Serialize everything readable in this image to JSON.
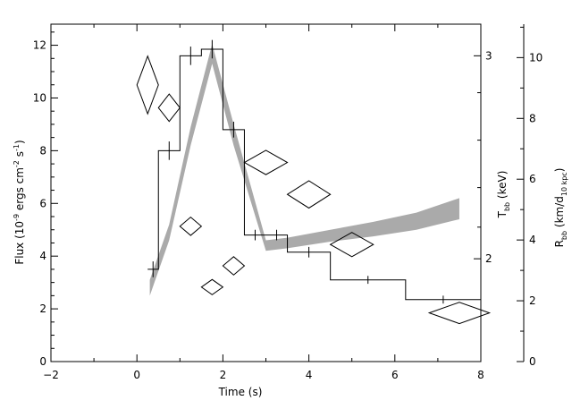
{
  "chart_data": {
    "type": "line",
    "title": "",
    "xlabel": "Time (s)",
    "ylabel_left_parts": {
      "pre": "Flux (10",
      "exp1": "-9",
      "mid": " ergs cm",
      "exp2": "-2",
      "mid2": " s",
      "exp3": "-1",
      "post": ")"
    },
    "ylabel_right1_parts": {
      "T": "T",
      "sub": "bb",
      "post": " (keV)"
    },
    "ylabel_right2_parts": {
      "R": "R",
      "sub": "bb",
      "mid": " (km/d",
      "sub2": "10 kpc",
      "post": ")"
    },
    "xlim": [
      -2,
      8
    ],
    "ylim_left": [
      0,
      12.8
    ],
    "ylim_right2": [
      0,
      11.1
    ],
    "x_ticks": [
      -2,
      0,
      2,
      4,
      6,
      8
    ],
    "y_left_ticks": [
      0,
      2,
      4,
      6,
      8,
      10,
      12
    ],
    "y_right2_ticks": [
      0,
      2,
      4,
      6,
      8,
      10
    ],
    "y_right1_ticks": [
      {
        "label": "2",
        "left_equiv": 3.9
      },
      {
        "label": "3",
        "left_equiv": 11.6
      }
    ],
    "series": [
      {
        "kind": "flux_histogram",
        "bins": [
          {
            "x0": 0.25,
            "x1": 0.5,
            "y": 3.5,
            "err": 0.3
          },
          {
            "x0": 0.5,
            "x1": 1.0,
            "y": 8.0,
            "err": 0.35
          },
          {
            "x0": 1.0,
            "x1": 1.5,
            "y": 11.6,
            "err": 0.35
          },
          {
            "x0": 1.5,
            "x1": 2.0,
            "y": 11.85,
            "err": 0.35
          },
          {
            "x0": 2.0,
            "x1": 2.5,
            "y": 8.8,
            "err": 0.3
          },
          {
            "x0": 2.5,
            "x1": 3.0,
            "y": 4.8,
            "err": 0.2
          },
          {
            "x0": 3.0,
            "x1": 3.5,
            "y": 4.8,
            "err": 0.2
          },
          {
            "x0": 3.5,
            "x1": 4.5,
            "y": 4.15,
            "err": 0.2
          },
          {
            "x0": 4.5,
            "x1": 6.25,
            "y": 3.1,
            "err": 0.15
          },
          {
            "x0": 6.25,
            "x1": 8.0,
            "y": 2.35,
            "err": 0.15
          }
        ]
      },
      {
        "kind": "temperature_band",
        "x": [
          0.3,
          0.75,
          1.25,
          1.75,
          2.25,
          3.0,
          3.5,
          4.5,
          5.5,
          6.5,
          7.5
        ],
        "lower": [
          2.5,
          4.6,
          8.2,
          11.3,
          8.2,
          4.2,
          4.3,
          4.55,
          4.75,
          5.0,
          5.4
        ],
        "upper": [
          3.1,
          5.2,
          8.9,
          12.05,
          9.0,
          4.6,
          4.7,
          5.0,
          5.3,
          5.65,
          6.2
        ]
      },
      {
        "kind": "radius_diamonds",
        "points": [
          {
            "x": 0.25,
            "y": 9.1,
            "xerr": 0.25,
            "yerr": 0.95
          },
          {
            "x": 0.75,
            "y": 8.35,
            "xerr": 0.25,
            "yerr": 0.45
          },
          {
            "x": 1.25,
            "y": 4.45,
            "xerr": 0.25,
            "yerr": 0.3
          },
          {
            "x": 1.75,
            "y": 2.45,
            "xerr": 0.25,
            "yerr": 0.25
          },
          {
            "x": 2.25,
            "y": 3.15,
            "xerr": 0.25,
            "yerr": 0.3
          },
          {
            "x": 3.0,
            "y": 6.55,
            "xerr": 0.5,
            "yerr": 0.4
          },
          {
            "x": 4.0,
            "y": 5.5,
            "xerr": 0.5,
            "yerr": 0.45
          },
          {
            "x": 5.0,
            "y": 3.85,
            "xerr": 0.5,
            "yerr": 0.4
          },
          {
            "x": 7.5,
            "y": 1.6,
            "xerr": 0.7,
            "yerr": 0.35
          }
        ]
      }
    ]
  }
}
